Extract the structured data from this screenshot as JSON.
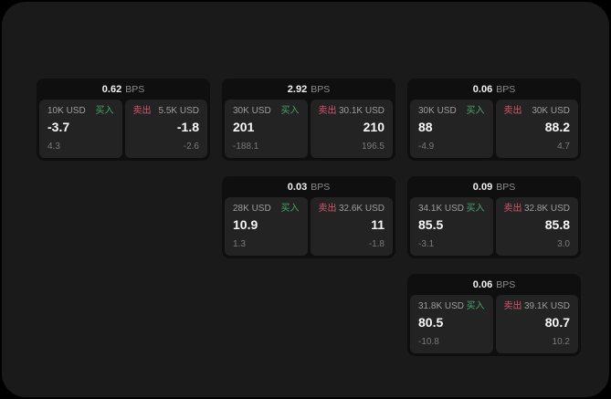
{
  "labels": {
    "bps": "BPS",
    "buy": "买入",
    "sell": "卖出"
  },
  "colors": {
    "backdrop": "#000000",
    "surface_bg": "#1a1a1a",
    "card_bg": "#0f0f0f",
    "panel_bg": "#232323",
    "buy_green": "#45a56d",
    "sell_red": "#d4566e",
    "text_primary": "#f7f7f7",
    "text_secondary": "#9e9e9e",
    "text_tertiary": "#7a7a7a"
  },
  "cards": [
    {
      "bps": "0.62",
      "buy": {
        "amount": "10K USD",
        "price": "-3.7",
        "delta": "4.3"
      },
      "sell": {
        "amount": "5.5K USD",
        "price": "-1.8",
        "delta": "-2.6"
      }
    },
    {
      "bps": "2.92",
      "buy": {
        "amount": "30K USD",
        "price": "201",
        "delta": "-188.1"
      },
      "sell": {
        "amount": "30.1K USD",
        "price": "210",
        "delta": "196.5"
      }
    },
    {
      "bps": "0.06",
      "buy": {
        "amount": "30K USD",
        "price": "88",
        "delta": "-4.9"
      },
      "sell": {
        "amount": "30K USD",
        "price": "88.2",
        "delta": "4.7"
      }
    },
    {
      "bps": "0.03",
      "buy": {
        "amount": "28K USD",
        "price": "10.9",
        "delta": "1.3"
      },
      "sell": {
        "amount": "32.6K USD",
        "price": "11",
        "delta": "-1.8"
      }
    },
    {
      "bps": "0.09",
      "buy": {
        "amount": "34.1K USD",
        "price": "85.5",
        "delta": "-3.1"
      },
      "sell": {
        "amount": "32.8K USD",
        "price": "85.8",
        "delta": "3.0"
      }
    },
    {
      "bps": "0.06",
      "buy": {
        "amount": "31.8K USD",
        "price": "80.5",
        "delta": "-10.8"
      },
      "sell": {
        "amount": "39.1K USD",
        "price": "80.7",
        "delta": "10.2"
      }
    }
  ]
}
